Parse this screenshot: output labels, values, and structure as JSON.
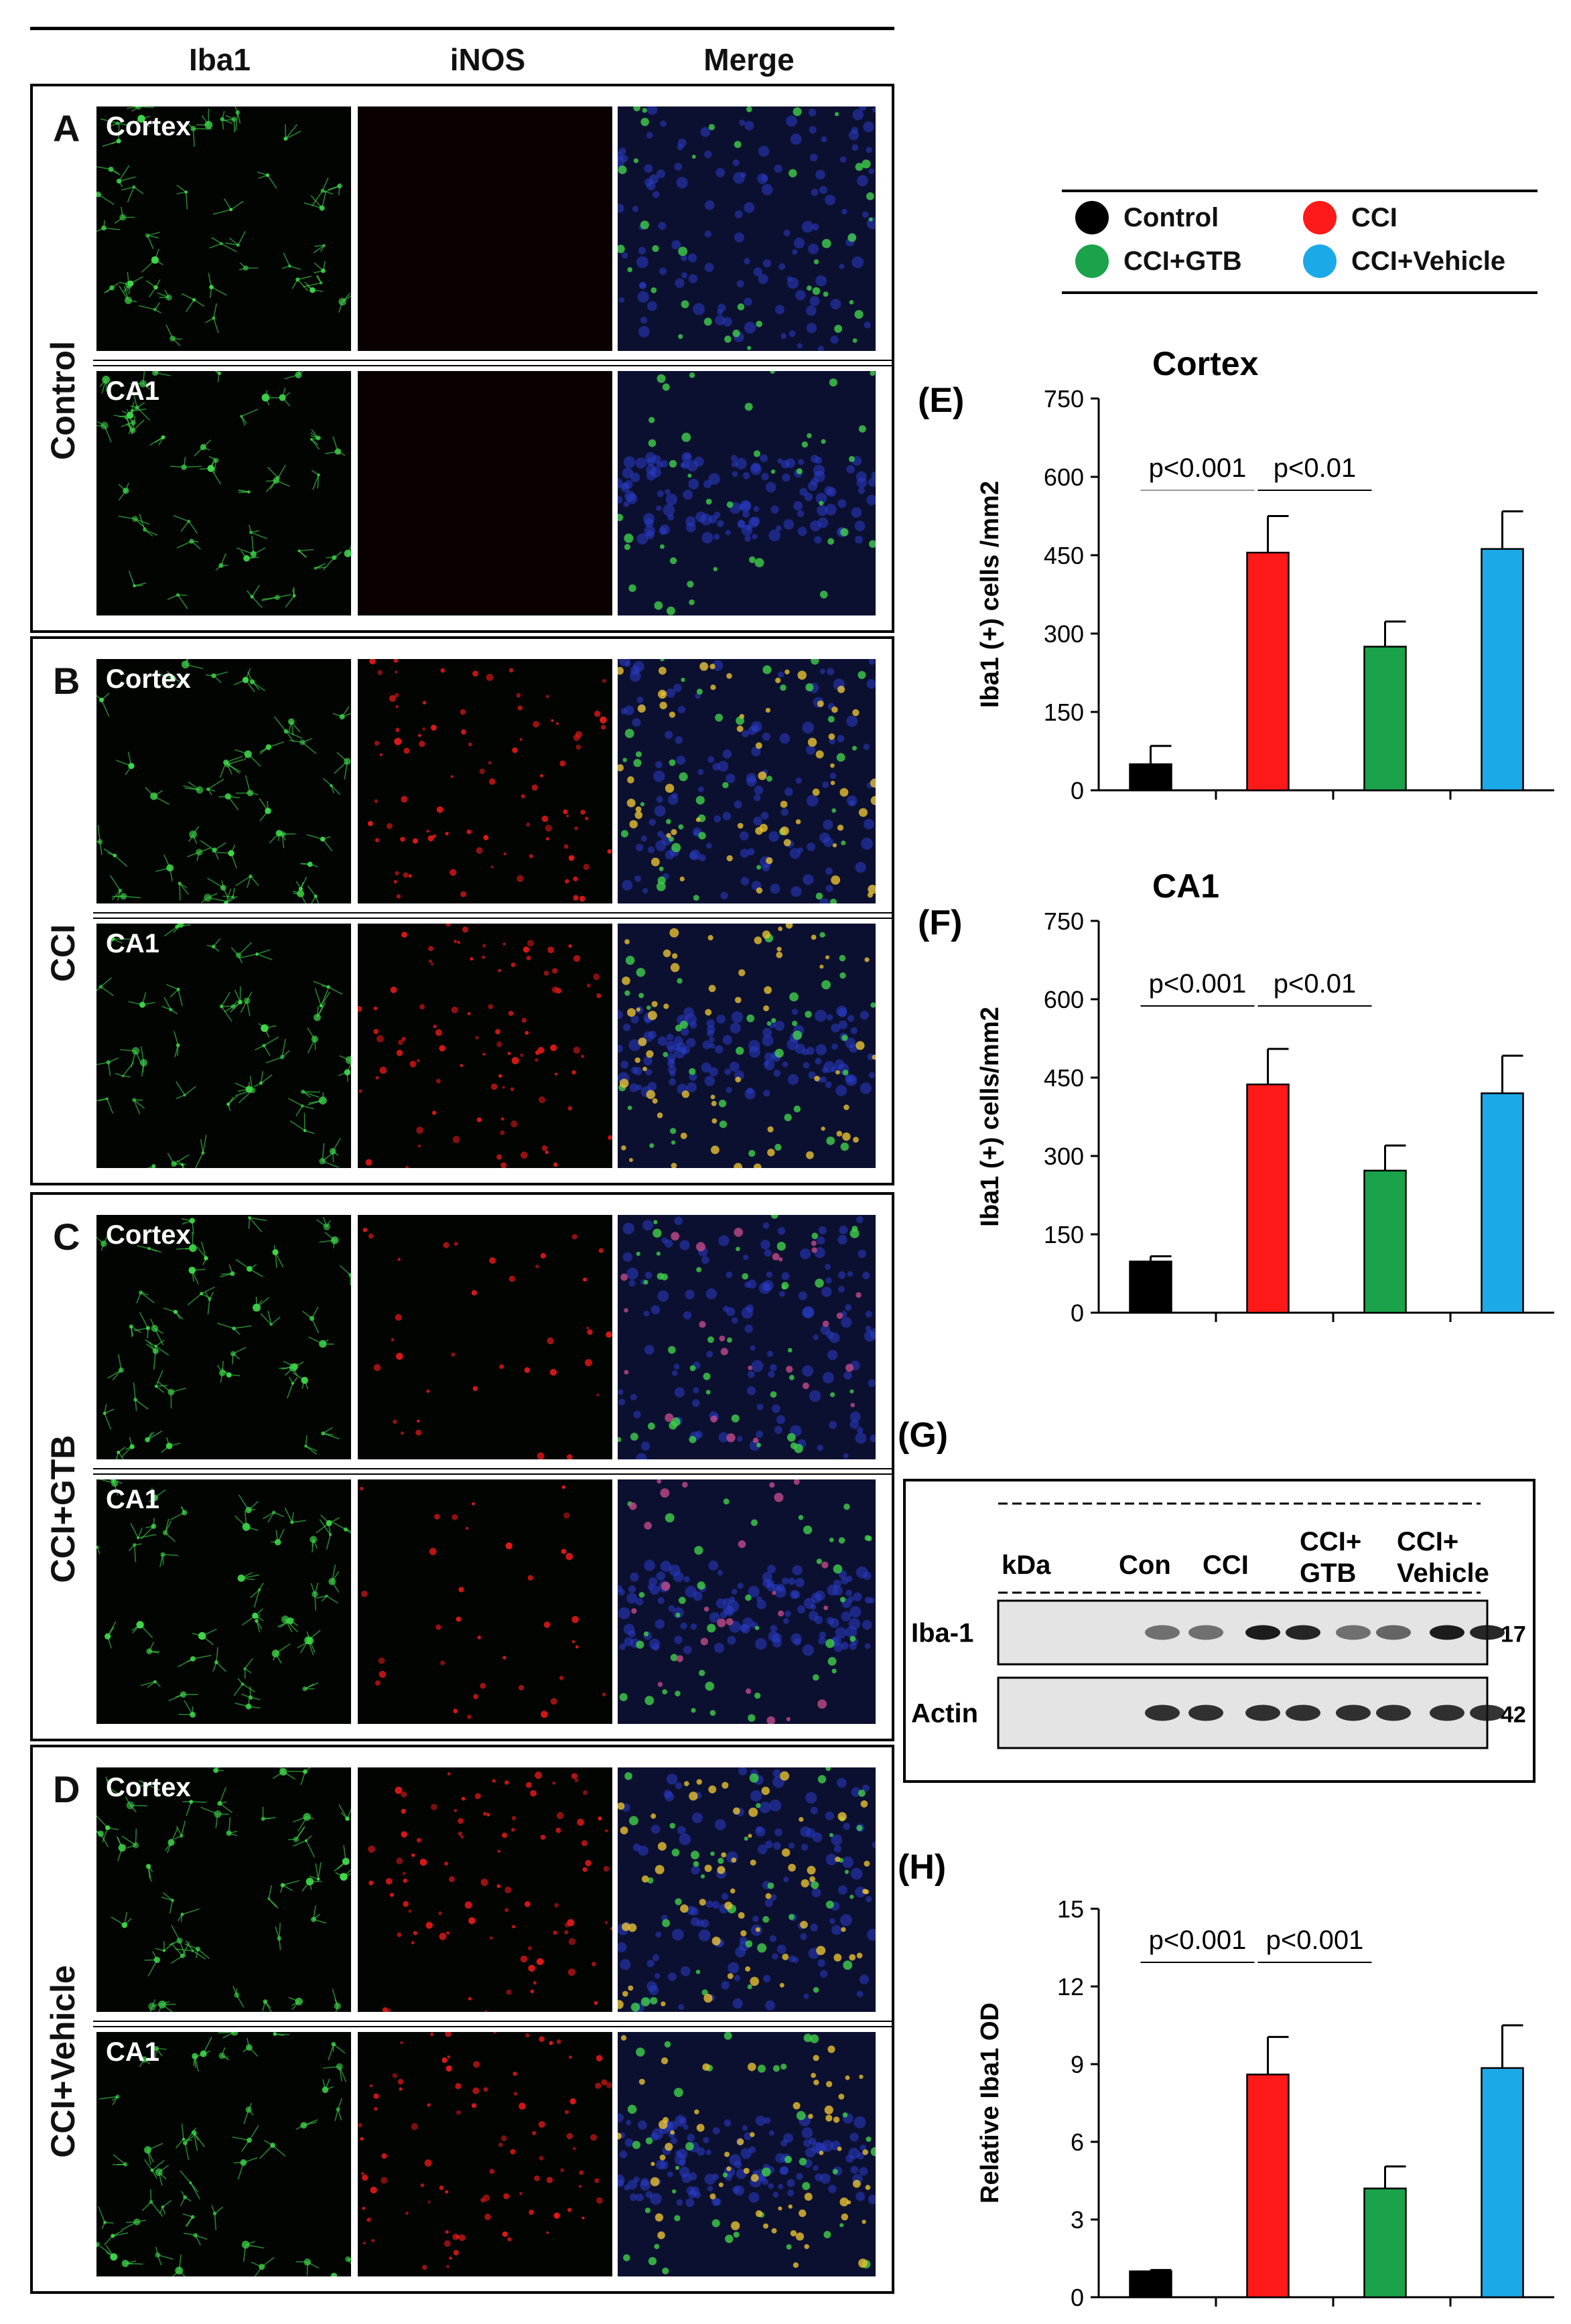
{
  "columns": [
    "Iba1",
    "iNOS",
    "Merge"
  ],
  "rows": [
    {
      "letter": "A",
      "group": "Control",
      "regions": [
        "Cortex",
        "CA1"
      ],
      "inos": "none"
    },
    {
      "letter": "B",
      "group": "CCI",
      "regions": [
        "Cortex",
        "CA1"
      ],
      "inos": "high"
    },
    {
      "letter": "C",
      "group": "CCI+GTB",
      "regions": [
        "Cortex",
        "CA1"
      ],
      "inos": "medium"
    },
    {
      "letter": "D",
      "group": "CCI+Vehicle",
      "regions": [
        "Cortex",
        "CA1"
      ],
      "inos": "high"
    }
  ],
  "legend": {
    "items": [
      {
        "label": "Control",
        "color": "#000000"
      },
      {
        "label": "CCI",
        "color": "#ff1a1a"
      },
      {
        "label": "CCI+GTB",
        "color": "#1aa34a"
      },
      {
        "label": "CCI+Vehicle",
        "color": "#1ba9e8"
      }
    ]
  },
  "colors": {
    "Control": "#000000",
    "CCI": "#ff1a1a",
    "CCI+GTB": "#1aa34a",
    "CCI+Vehicle": "#1ba9e8"
  },
  "chart_data": [
    {
      "panel": "(E)",
      "type": "bar",
      "title": "Cortex",
      "ylabel": "Iba1 (+) cells /mm2",
      "categories": [
        "Control",
        "CCI",
        "CCI+GTB",
        "CCI+Vehicle"
      ],
      "values": [
        50,
        455,
        275,
        462
      ],
      "errors": [
        35,
        70,
        48,
        72
      ],
      "ylim": [
        0,
        750
      ],
      "yticks": [
        0,
        150,
        300,
        450,
        600,
        750
      ],
      "annotations": [
        {
          "text": "p<0.001",
          "from": 0,
          "to": 1
        },
        {
          "text": "p<0.01",
          "from": 1,
          "to": 2
        }
      ]
    },
    {
      "panel": "(F)",
      "type": "bar",
      "title": "CA1",
      "ylabel": "Iba1 (+) cells/mm2",
      "categories": [
        "Control",
        "CCI",
        "CCI+GTB",
        "CCI+Vehicle"
      ],
      "values": [
        98,
        437,
        272,
        420
      ],
      "errors": [
        10,
        68,
        48,
        72
      ],
      "ylim": [
        0,
        750
      ],
      "yticks": [
        0,
        150,
        300,
        450,
        600,
        750
      ],
      "annotations": [
        {
          "text": "p<0.001",
          "from": 0,
          "to": 1
        },
        {
          "text": "p<0.01",
          "from": 1,
          "to": 2
        }
      ]
    },
    {
      "panel": "(H)",
      "type": "bar",
      "title": "",
      "ylabel": "Relative Iba1 OD",
      "categories": [
        "Control",
        "CCI",
        "CCI+GTB",
        "CCI+Vehicle"
      ],
      "values": [
        1.0,
        8.6,
        4.2,
        8.85
      ],
      "errors": [
        0.05,
        1.45,
        0.85,
        1.65
      ],
      "ylim": [
        0,
        15
      ],
      "yticks": [
        0,
        3,
        6,
        9,
        12,
        15
      ],
      "annotations": [
        {
          "text": "p<0.001",
          "from": 0,
          "to": 1
        },
        {
          "text": "p<0.001",
          "from": 1,
          "to": 2
        }
      ]
    }
  ],
  "blot": {
    "panel": "(G)",
    "kda_label": "kDa",
    "groups": [
      "Con",
      "CCI",
      "CCI+",
      "CCI+"
    ],
    "groups_line2": [
      "",
      "",
      "GTB",
      "Vehicle"
    ],
    "rows": [
      {
        "label": "Iba-1",
        "kda": "17"
      },
      {
        "label": "Actin",
        "kda": "42"
      }
    ]
  }
}
